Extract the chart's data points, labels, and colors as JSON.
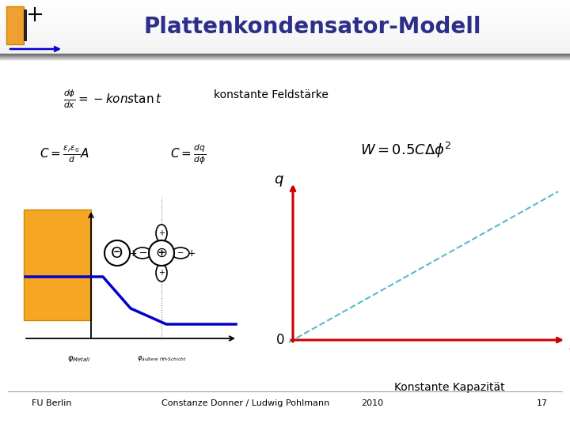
{
  "title": "Plattenkondensator-Modell",
  "title_color": "#2e2e8b",
  "title_fontsize": 20,
  "bg_color": "#ffffff",
  "formula_dphi": "$\\frac{d\\phi}{dx} = -kons\\tan t$",
  "formula_feldstaerke": "konstante Feldstärke",
  "formula_C1": "$C = \\frac{\\varepsilon_r\\varepsilon_0}{d} A$",
  "formula_C2": "$C = \\frac{dq}{d\\phi}$",
  "formula_W": "$W = 0.5C\\Delta\\phi^2$",
  "graph_label_q": "q",
  "graph_label_0": "0",
  "graph_label_phi": "$\\phi$",
  "graph_caption": "Konstante Kapazität",
  "left_xlabel_1": "$\\varphi_{Metall}$",
  "left_xlabel_2": "$\\varphi_{äußere\\ HH\\text{-}Schicht}$",
  "footer_left": "FU Berlin",
  "footer_center": "Constanze Donner / Ludwig Pohlmann",
  "footer_year": "2010",
  "footer_page": "17",
  "arrow_color": "#cc0000",
  "line_color_left": "#0000cc",
  "dashed_line_color": "#55bbcc"
}
